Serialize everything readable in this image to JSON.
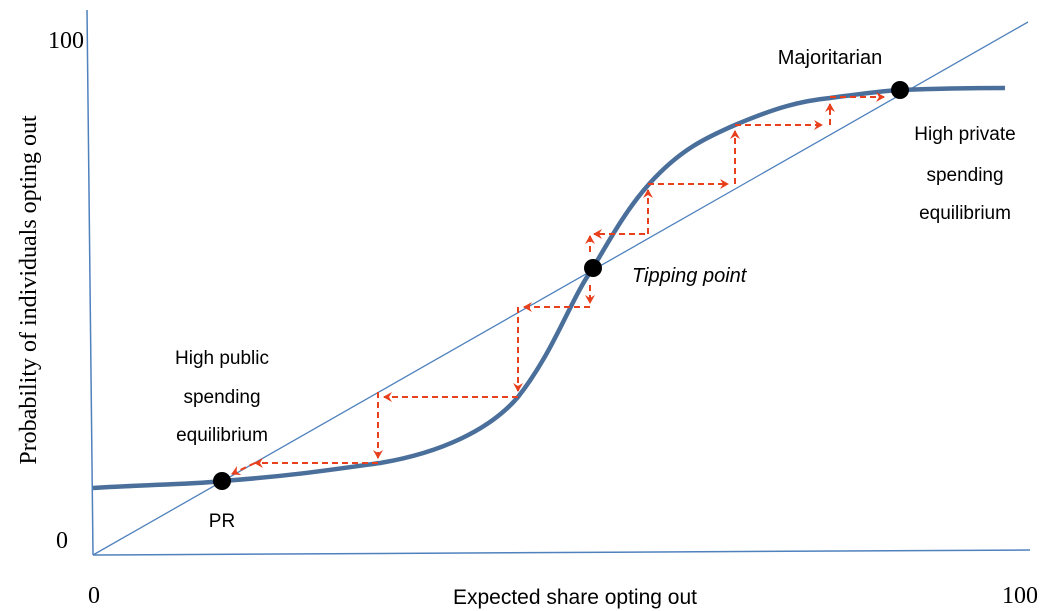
{
  "axes": {
    "y_label": "Probability of individuals opting out",
    "x_label": "Expected share opting out",
    "y_max": "100",
    "y_min": "0",
    "x_min": "0",
    "x_max": "100"
  },
  "labels": {
    "majoritarian": "Majoritarian",
    "private": [
      "High private",
      "spending",
      "equilibrium"
    ],
    "tipping": "Tipping point",
    "public": [
      "High public",
      "spending",
      "equilibrium"
    ],
    "pr": "PR"
  }
}
